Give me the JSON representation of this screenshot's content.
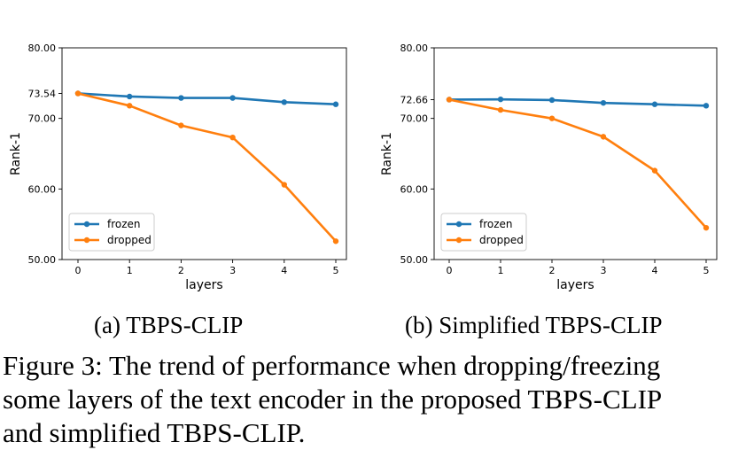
{
  "chart_data": [
    {
      "type": "line",
      "title": "",
      "xlabel": "layers",
      "ylabel": "Rank-1",
      "x": [
        0,
        1,
        2,
        3,
        4,
        5
      ],
      "x_tick_labels": [
        "0",
        "1",
        "2",
        "3",
        "4",
        "5"
      ],
      "y_tick_labels": [
        "50.00",
        "60.00",
        "70.00",
        "73.54",
        "80.00"
      ],
      "y_ticks": [
        50,
        60,
        70,
        73.54,
        80
      ],
      "ylim": [
        50,
        80
      ],
      "grid": false,
      "legend_position": "lower-left",
      "series": [
        {
          "name": "frozen",
          "color": "#1f77b4",
          "values": [
            73.54,
            73.1,
            72.9,
            72.9,
            72.3,
            72.0
          ]
        },
        {
          "name": "dropped",
          "color": "#ff7f0e",
          "values": [
            73.54,
            71.8,
            69.0,
            67.3,
            60.6,
            52.6
          ]
        }
      ]
    },
    {
      "type": "line",
      "title": "",
      "xlabel": "layers",
      "ylabel": "Rank-1",
      "x": [
        0,
        1,
        2,
        3,
        4,
        5
      ],
      "x_tick_labels": [
        "0",
        "1",
        "2",
        "3",
        "4",
        "5"
      ],
      "y_tick_labels": [
        "50.00",
        "60.00",
        "70.00",
        "72.66",
        "80.00"
      ],
      "y_ticks": [
        50,
        60,
        70,
        72.66,
        80
      ],
      "ylim": [
        50,
        80
      ],
      "grid": false,
      "legend_position": "lower-left",
      "series": [
        {
          "name": "frozen",
          "color": "#1f77b4",
          "values": [
            72.66,
            72.7,
            72.6,
            72.2,
            72.0,
            71.8
          ]
        },
        {
          "name": "dropped",
          "color": "#ff7f0e",
          "values": [
            72.66,
            71.2,
            70.0,
            67.4,
            62.6,
            54.5
          ]
        }
      ]
    }
  ],
  "subcaptions": {
    "a": "(a) TBPS-CLIP",
    "b": "(b) Simplified TBPS-CLIP"
  },
  "caption": {
    "line1": "Figure 3: The trend of performance when dropping/freezing",
    "line2": "some layers of the text encoder in the proposed TBPS-CLIP",
    "line3": "and simplified TBPS-CLIP."
  }
}
